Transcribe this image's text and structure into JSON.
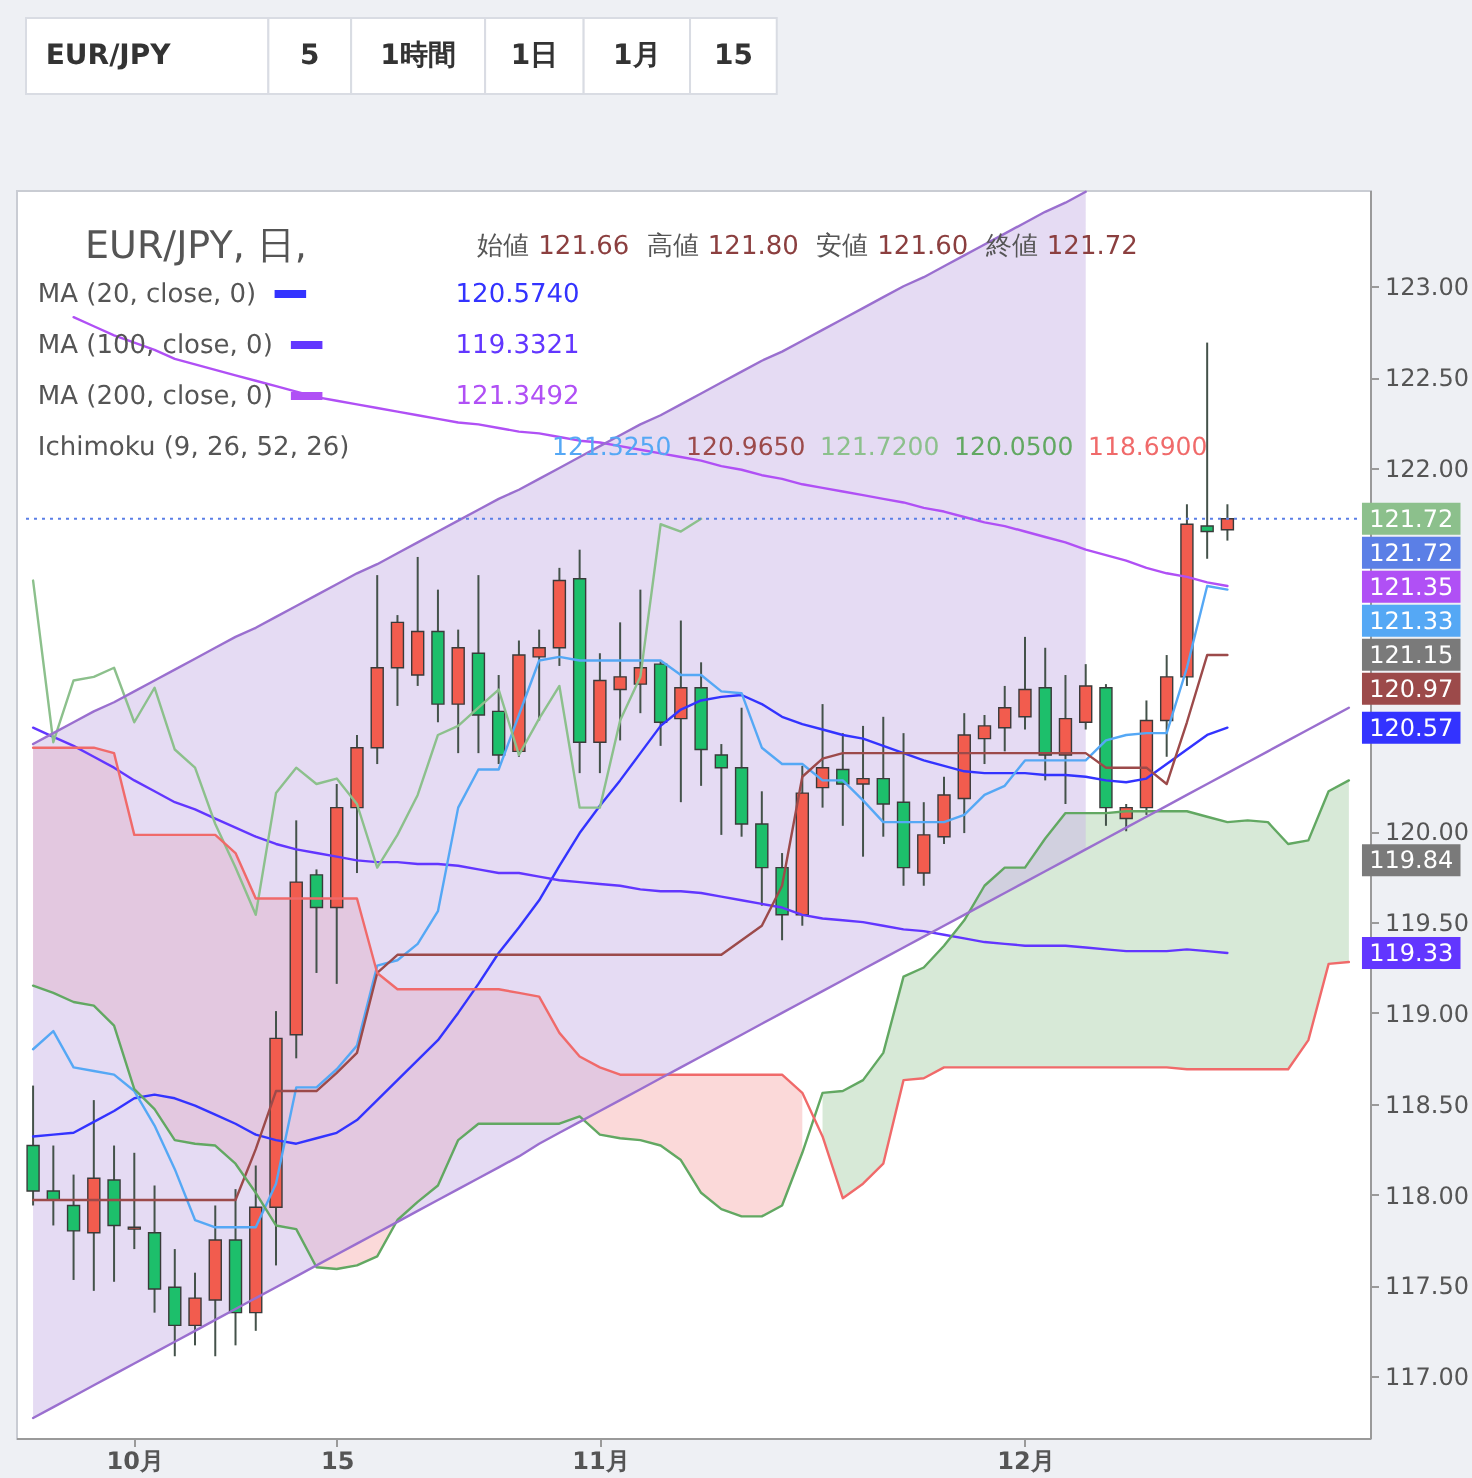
{
  "chart_data": {
    "type": "candlestick",
    "title": "EUR/JPY, 日,",
    "legend": "top left",
    "categories": [
      null,
      null,
      null,
      null,
      null,
      "10月",
      null,
      null,
      null,
      null,
      null,
      null,
      null,
      null,
      null,
      "15",
      null,
      null,
      null,
      null,
      null,
      null,
      null,
      null,
      null,
      null,
      null,
      null,
      "11月",
      null,
      null,
      null,
      null,
      null,
      null,
      null,
      null,
      null,
      null,
      null,
      null,
      null,
      null,
      null,
      null,
      null,
      null,
      null,
      null,
      "12月",
      null,
      null,
      null,
      null,
      null,
      null,
      null,
      null,
      null,
      null,
      null,
      null,
      null,
      null,
      null,
      null
    ],
    "ylim": [
      116.66,
      123.53
    ],
    "yticks": [
      {
        "value": 117,
        "label": "117.00"
      },
      {
        "value": 117.5,
        "label": "117.50"
      },
      {
        "value": 118,
        "label": "118.00"
      },
      {
        "value": 118.5,
        "label": "118.50"
      },
      {
        "value": 119,
        "label": "119.00"
      },
      {
        "value": 119.5,
        "label": "119.50"
      },
      {
        "value": 120,
        "label": "120.00"
      },
      {
        "value": 122,
        "label": "122.00"
      },
      {
        "value": 122.5,
        "label": "122.50"
      },
      {
        "value": 123,
        "label": "123.00"
      }
    ],
    "ohlc": [
      [
        118.27,
        118.6,
        117.94,
        118.02
      ],
      [
        118.02,
        118.27,
        117.83,
        117.97
      ],
      [
        117.94,
        118.11,
        117.53,
        117.8
      ],
      [
        117.79,
        118.52,
        117.47,
        118.09
      ],
      [
        118.08,
        118.27,
        117.52,
        117.83
      ],
      [
        117.81,
        118.23,
        117.7,
        117.82
      ],
      [
        117.79,
        118.05,
        117.35,
        117.48
      ],
      [
        117.49,
        117.7,
        117.11,
        117.28
      ],
      [
        117.28,
        117.57,
        117.17,
        117.43
      ],
      [
        117.42,
        117.94,
        117.11,
        117.75
      ],
      [
        117.75,
        118.03,
        117.17,
        117.35
      ],
      [
        117.35,
        118.16,
        117.25,
        117.93
      ],
      [
        117.93,
        119.01,
        117.61,
        118.86
      ],
      [
        118.88,
        120.06,
        118.75,
        119.72
      ],
      [
        119.76,
        119.79,
        119.22,
        119.58
      ],
      [
        119.58,
        120.26,
        119.16,
        120.13
      ],
      [
        120.13,
        120.53,
        119.77,
        120.46
      ],
      [
        120.46,
        121.41,
        120.37,
        120.9
      ],
      [
        120.9,
        121.19,
        120.69,
        121.15
      ],
      [
        120.86,
        121.51,
        120.8,
        121.1
      ],
      [
        121.1,
        121.33,
        120.6,
        120.7
      ],
      [
        120.7,
        121.11,
        120.43,
        121.01
      ],
      [
        120.98,
        121.41,
        120.43,
        120.64
      ],
      [
        120.66,
        120.86,
        120.37,
        120.42
      ],
      [
        120.44,
        121.05,
        120.41,
        120.97
      ],
      [
        120.96,
        121.11,
        120.61,
        121.01
      ],
      [
        121.01,
        121.45,
        120.91,
        121.38
      ],
      [
        121.39,
        121.55,
        120.32,
        120.49
      ],
      [
        120.49,
        120.98,
        120.32,
        120.83
      ],
      [
        120.78,
        121.15,
        120.5,
        120.85
      ],
      [
        120.81,
        121.33,
        120.65,
        120.9
      ],
      [
        120.92,
        120.94,
        120.47,
        120.6
      ],
      [
        120.62,
        121.16,
        120.16,
        120.79
      ],
      [
        120.79,
        120.93,
        120.25,
        120.45
      ],
      [
        120.42,
        120.48,
        119.98,
        120.35
      ],
      [
        120.35,
        120.68,
        119.97,
        120.04
      ],
      [
        120.04,
        120.22,
        119.59,
        119.8
      ],
      [
        119.8,
        119.88,
        119.4,
        119.54
      ],
      [
        119.54,
        120.36,
        119.48,
        120.21
      ],
      [
        120.24,
        120.7,
        120.13,
        120.35
      ],
      [
        120.34,
        120.54,
        120.03,
        120.26
      ],
      [
        120.26,
        120.58,
        119.86,
        120.29
      ],
      [
        120.29,
        120.63,
        119.97,
        120.15
      ],
      [
        120.16,
        120.54,
        119.7,
        119.8
      ],
      [
        119.77,
        120.16,
        119.7,
        119.98
      ],
      [
        119.97,
        120.3,
        119.93,
        120.2
      ],
      [
        120.18,
        120.65,
        119.99,
        120.53
      ],
      [
        120.51,
        120.64,
        120.37,
        120.58
      ],
      [
        120.57,
        120.8,
        120.44,
        120.68
      ],
      [
        120.63,
        121.07,
        120.56,
        120.78
      ],
      [
        120.79,
        121.01,
        120.28,
        120.42
      ],
      [
        120.42,
        120.86,
        120.15,
        120.62
      ],
      [
        120.6,
        120.92,
        120.56,
        120.8
      ],
      [
        120.79,
        120.81,
        120.03,
        120.13
      ],
      [
        120.07,
        120.15,
        120.0,
        120.13
      ],
      [
        120.13,
        120.72,
        120.09,
        120.61
      ],
      [
        120.61,
        120.97,
        120.41,
        120.85
      ],
      [
        120.85,
        121.8,
        120.8,
        121.69
      ],
      [
        121.68,
        122.69,
        121.5,
        121.65
      ],
      [
        121.66,
        121.8,
        121.6,
        121.72
      ],
      null,
      null,
      null,
      null,
      null,
      null
    ],
    "colors": [
      "#1dbf6b",
      "#1dbf6b",
      "#1dbf6b",
      "#f25c4e",
      "#1dbf6b",
      "#f25c4e",
      "#1dbf6b",
      "#1dbf6b",
      "#f25c4e",
      "#f25c4e",
      "#1dbf6b",
      "#f25c4e",
      "#f25c4e",
      "#f25c4e",
      "#1dbf6b",
      "#f25c4e",
      "#f25c4e",
      "#f25c4e",
      "#f25c4e",
      "#f25c4e",
      "#1dbf6b",
      "#f25c4e",
      "#1dbf6b",
      "#1dbf6b",
      "#f25c4e",
      "#f25c4e",
      "#f25c4e",
      "#1dbf6b",
      "#f25c4e",
      "#f25c4e",
      "#f25c4e",
      "#1dbf6b",
      "#f25c4e",
      "#1dbf6b",
      "#1dbf6b",
      "#1dbf6b",
      "#1dbf6b",
      "#1dbf6b",
      "#f25c4e",
      "#f25c4e",
      "#1dbf6b",
      "#f25c4e",
      "#1dbf6b",
      "#1dbf6b",
      "#f25c4e",
      "#f25c4e",
      "#f25c4e",
      "#f25c4e",
      "#f25c4e",
      "#f25c4e",
      "#1dbf6b",
      "#f25c4e",
      "#f25c4e",
      "#1dbf6b",
      "#f25c4e",
      "#f25c4e",
      "#f25c4e",
      "#f25c4e",
      "#1dbf6b",
      "#f25c4e",
      null,
      null,
      null,
      null,
      null,
      null
    ],
    "series": [
      {
        "name": "MA (20, close, 0)",
        "type": "line",
        "color": "#3333ff",
        "values": [
          118.32,
          118.33,
          118.34,
          118.4,
          118.46,
          118.53,
          118.55,
          118.53,
          118.49,
          118.44,
          118.39,
          118.33,
          118.3,
          118.28,
          118.31,
          118.34,
          118.41,
          118.52,
          118.63,
          118.74,
          118.85,
          119.0,
          119.16,
          119.33,
          119.47,
          119.62,
          119.81,
          119.99,
          120.14,
          120.28,
          120.43,
          120.58,
          120.67,
          120.72,
          120.74,
          120.75,
          120.7,
          120.63,
          120.59,
          120.56,
          120.53,
          120.51,
          120.47,
          120.43,
          120.39,
          120.36,
          120.33,
          120.32,
          120.32,
          120.32,
          120.31,
          120.31,
          120.3,
          120.28,
          120.27,
          120.29,
          120.37,
          120.45,
          120.53,
          120.57,
          null,
          null,
          null,
          null,
          null,
          null
        ]
      },
      {
        "name": "MA (100, close, 0)",
        "type": "line",
        "color": "#6236ff",
        "values": [
          120.57,
          120.52,
          120.47,
          120.41,
          120.35,
          120.28,
          120.22,
          120.16,
          120.12,
          120.07,
          120.02,
          119.97,
          119.93,
          119.9,
          119.88,
          119.86,
          119.84,
          119.83,
          119.83,
          119.82,
          119.82,
          119.81,
          119.79,
          119.77,
          119.77,
          119.75,
          119.73,
          119.72,
          119.71,
          119.7,
          119.68,
          119.67,
          119.67,
          119.66,
          119.64,
          119.62,
          119.6,
          119.58,
          119.54,
          119.52,
          119.51,
          119.5,
          119.48,
          119.46,
          119.45,
          119.43,
          119.41,
          119.39,
          119.38,
          119.37,
          119.37,
          119.37,
          119.36,
          119.35,
          119.34,
          119.34,
          119.34,
          119.35,
          119.34,
          119.33,
          null,
          null,
          null,
          null,
          null,
          null
        ]
      },
      {
        "name": "MA (200, close, 0)",
        "type": "line",
        "color": "#b050f5",
        "values": [
          null,
          null,
          122.83,
          122.78,
          122.73,
          122.69,
          122.65,
          122.6,
          122.57,
          122.54,
          122.51,
          122.48,
          122.45,
          122.42,
          122.39,
          122.37,
          122.35,
          122.33,
          122.31,
          122.29,
          122.27,
          122.25,
          122.24,
          122.22,
          122.2,
          122.19,
          122.17,
          122.15,
          122.14,
          122.12,
          122.1,
          122.08,
          122.06,
          122.04,
          122.01,
          121.99,
          121.96,
          121.94,
          121.91,
          121.89,
          121.87,
          121.85,
          121.83,
          121.81,
          121.78,
          121.76,
          121.73,
          121.7,
          121.68,
          121.65,
          121.62,
          121.59,
          121.55,
          121.52,
          121.49,
          121.45,
          121.42,
          121.4,
          121.37,
          121.35,
          null,
          null,
          null,
          null,
          null,
          null
        ]
      },
      {
        "type": "line",
        "color": "#55a8f5",
        "values": [
          118.8,
          118.9,
          118.7,
          118.68,
          118.66,
          118.57,
          118.38,
          118.14,
          117.86,
          117.82,
          117.82,
          117.82,
          118.06,
          118.59,
          118.59,
          118.69,
          118.82,
          119.26,
          119.29,
          119.38,
          119.56,
          120.13,
          120.34,
          120.34,
          120.64,
          120.94,
          120.96,
          120.94,
          120.94,
          120.94,
          120.94,
          120.94,
          120.86,
          120.86,
          120.77,
          120.76,
          120.46,
          120.37,
          120.37,
          120.28,
          120.28,
          120.17,
          120.05,
          120.05,
          120.05,
          120.05,
          120.09,
          120.2,
          120.25,
          120.39,
          120.39,
          120.39,
          120.39,
          120.5,
          120.53,
          120.54,
          120.54,
          120.9,
          121.35,
          121.33,
          null,
          null,
          null,
          null,
          null,
          null
        ]
      },
      {
        "type": "line",
        "color": "#9c4a4a",
        "values": [
          117.97,
          117.97,
          117.97,
          117.97,
          117.97,
          117.97,
          117.97,
          117.97,
          117.97,
          117.97,
          117.97,
          118.25,
          118.57,
          118.57,
          118.57,
          118.67,
          118.78,
          119.22,
          119.32,
          119.32,
          119.32,
          119.32,
          119.32,
          119.32,
          119.32,
          119.32,
          119.32,
          119.32,
          119.32,
          119.32,
          119.32,
          119.32,
          119.32,
          119.32,
          119.32,
          119.4,
          119.48,
          119.7,
          120.3,
          120.4,
          120.43,
          120.43,
          120.43,
          120.43,
          120.43,
          120.43,
          120.43,
          120.43,
          120.43,
          120.43,
          120.43,
          120.43,
          120.43,
          120.35,
          120.35,
          120.35,
          120.26,
          120.6,
          120.97,
          120.97,
          null,
          null,
          null,
          null,
          null,
          null
        ]
      },
      {
        "type": "line",
        "color": "#8cc08c",
        "values": [
          121.38,
          120.49,
          120.83,
          120.85,
          120.9,
          120.6,
          120.79,
          120.45,
          120.35,
          120.04,
          119.8,
          119.54,
          120.21,
          120.35,
          120.26,
          120.29,
          120.15,
          119.8,
          119.98,
          120.2,
          120.53,
          120.58,
          120.68,
          120.78,
          120.42,
          120.62,
          120.8,
          120.13,
          120.13,
          120.61,
          120.85,
          121.69,
          121.65,
          121.72,
          null,
          null,
          null,
          null,
          null,
          null,
          null,
          null,
          null,
          null,
          null,
          null,
          null,
          null,
          null,
          null,
          null,
          null,
          null,
          null,
          null,
          null,
          null,
          null,
          null,
          null,
          null,
          null,
          null,
          null,
          null,
          null
        ]
      },
      {
        "type": "line",
        "color": "#62a862",
        "values": [
          119.15,
          119.11,
          119.06,
          119.04,
          118.93,
          118.58,
          118.47,
          118.3,
          118.28,
          118.27,
          118.17,
          118.01,
          117.83,
          117.81,
          117.6,
          117.59,
          117.61,
          117.66,
          117.86,
          117.96,
          118.05,
          118.3,
          118.39,
          118.39,
          118.39,
          118.39,
          118.39,
          118.43,
          118.33,
          118.31,
          118.3,
          118.27,
          118.19,
          118.01,
          117.92,
          117.88,
          117.88,
          117.94,
          118.23,
          118.56,
          118.57,
          118.63,
          118.78,
          119.2,
          119.25,
          119.37,
          119.51,
          119.7,
          119.8,
          119.8,
          119.96,
          120.1,
          120.1,
          120.1,
          120.11,
          120.11,
          120.11,
          120.11,
          120.08,
          120.05,
          120.06,
          120.05,
          119.93,
          119.95,
          120.22,
          120.28
        ],
        "lower": [
          null,
          null,
          null,
          null,
          null,
          null,
          null,
          null,
          null,
          null,
          null,
          null,
          null,
          null,
          null,
          null,
          null,
          null,
          null,
          null,
          null,
          null,
          null,
          null,
          null,
          null,
          null,
          null,
          null,
          null,
          null,
          null,
          null,
          null,
          null,
          null,
          null,
          null,
          null,
          118.32,
          117.98,
          118.06,
          118.17,
          118.63,
          118.64,
          118.7,
          118.7,
          118.7,
          118.7,
          118.7,
          118.7,
          118.7,
          118.7,
          118.7,
          118.7,
          118.7,
          118.7,
          118.69,
          118.69,
          118.69,
          118.69,
          118.69,
          118.69,
          118.85,
          119.27,
          119.28
        ],
        "upper": [
          null,
          null,
          null,
          null,
          null,
          null,
          null,
          null,
          null,
          null,
          null,
          null,
          null,
          null,
          null,
          null,
          null,
          null,
          null,
          null,
          null,
          null,
          null,
          null,
          null,
          null,
          null,
          null,
          null,
          null,
          null,
          null,
          null,
          null,
          null,
          null,
          null,
          null,
          null,
          118.56,
          118.57,
          118.63,
          118.78,
          119.2,
          119.25,
          119.37,
          119.51,
          119.7,
          119.8,
          119.8,
          119.96,
          120.1,
          120.1,
          120.1,
          120.11,
          120.11,
          120.11,
          120.11,
          120.08,
          120.05,
          120.06,
          120.05,
          119.93,
          119.95,
          120.22,
          120.28
        ]
      },
      {
        "type": "line",
        "color": "#f06a6a",
        "values": [
          120.46,
          120.46,
          120.46,
          120.46,
          120.43,
          119.98,
          119.98,
          119.98,
          119.98,
          119.98,
          119.88,
          119.63,
          119.63,
          119.63,
          119.63,
          119.63,
          119.63,
          119.22,
          119.13,
          119.13,
          119.13,
          119.13,
          119.13,
          119.13,
          119.11,
          119.09,
          118.89,
          118.76,
          118.7,
          118.66,
          118.66,
          118.66,
          118.66,
          118.66,
          118.66,
          118.66,
          118.66,
          118.66,
          118.56,
          118.32,
          117.98,
          118.06,
          118.17,
          118.63,
          118.64,
          118.7,
          118.7,
          118.7,
          118.7,
          118.7,
          118.7,
          118.7,
          118.7,
          118.7,
          118.7,
          118.7,
          118.7,
          118.69,
          118.69,
          118.69,
          118.69,
          118.69,
          118.69,
          118.85,
          119.27,
          119.28
        ],
        "lower": [
          119.15,
          119.11,
          119.06,
          119.04,
          118.93,
          118.58,
          118.47,
          118.3,
          118.28,
          118.27,
          118.17,
          118.01,
          117.83,
          117.81,
          117.6,
          117.59,
          117.61,
          117.66,
          117.86,
          117.96,
          118.05,
          118.3,
          118.39,
          118.39,
          118.39,
          118.39,
          118.39,
          118.43,
          118.33,
          118.31,
          118.3,
          118.27,
          118.19,
          118.01,
          117.92,
          117.88,
          117.88,
          117.94,
          118.23,
          null,
          null,
          null,
          null,
          null,
          null,
          null,
          null,
          null,
          null,
          null,
          null,
          null,
          null,
          null,
          null,
          null,
          null,
          null,
          null,
          null,
          null,
          null,
          null,
          null,
          null,
          null
        ],
        "upper": [
          120.46,
          120.46,
          120.46,
          120.46,
          120.43,
          119.98,
          119.98,
          119.98,
          119.98,
          119.98,
          119.88,
          119.63,
          119.63,
          119.63,
          119.63,
          119.63,
          119.63,
          119.22,
          119.13,
          119.13,
          119.13,
          119.13,
          119.13,
          119.13,
          119.11,
          119.09,
          118.89,
          118.76,
          118.7,
          118.66,
          118.66,
          118.66,
          118.66,
          118.66,
          118.66,
          118.66,
          118.66,
          118.66,
          118.56,
          null,
          null,
          null,
          null,
          null,
          null,
          null,
          null,
          null,
          null,
          null,
          null,
          null,
          null,
          null,
          null,
          null,
          null,
          null,
          null,
          null,
          null,
          null,
          null,
          null,
          null,
          null
        ]
      },
      {
        "type": "line",
        "color": "#9a6fcf",
        "values": [
          120.48,
          120.54,
          120.6,
          120.66,
          120.71,
          120.77,
          120.83,
          120.89,
          120.95,
          121.01,
          121.07,
          121.12,
          121.18,
          121.24,
          121.3,
          121.36,
          121.42,
          121.47,
          121.53,
          121.59,
          121.65,
          121.71,
          121.77,
          121.83,
          121.88,
          121.94,
          122.0,
          122.06,
          122.12,
          122.18,
          122.24,
          122.29,
          122.35,
          122.41,
          122.47,
          122.53,
          122.59,
          122.64,
          122.7,
          122.76,
          122.82,
          122.88,
          122.94,
          123.0,
          123.05,
          123.11,
          123.17,
          123.23,
          123.29,
          123.35,
          123.41,
          123.46,
          123.52,
          null,
          null,
          null,
          null,
          null,
          null,
          null,
          null,
          null,
          null,
          null,
          null,
          null
        ],
        "lower": [
          116.77,
          116.83,
          116.89,
          116.95,
          117.01,
          117.07,
          117.13,
          117.19,
          117.25,
          117.31,
          117.37,
          117.43,
          117.49,
          117.55,
          117.61,
          117.67,
          117.73,
          117.79,
          117.85,
          117.91,
          117.97,
          118.03,
          118.09,
          118.15,
          118.21,
          118.28,
          118.34,
          118.4,
          118.46,
          118.52,
          118.58,
          118.64,
          118.7,
          118.76,
          118.82,
          118.88,
          118.94,
          119.0,
          119.06,
          119.12,
          119.18,
          119.24,
          119.3,
          119.36,
          119.42,
          119.48,
          119.54,
          119.6,
          119.66,
          119.72,
          119.78,
          119.84,
          119.9,
          null,
          null,
          null,
          null,
          null,
          null,
          null,
          null,
          null,
          null,
          null,
          null,
          null
        ],
        "upper": [
          120.48,
          120.54,
          120.6,
          120.66,
          120.71,
          120.77,
          120.83,
          120.89,
          120.95,
          121.01,
          121.07,
          121.12,
          121.18,
          121.24,
          121.3,
          121.36,
          121.42,
          121.47,
          121.53,
          121.59,
          121.65,
          121.71,
          121.77,
          121.83,
          121.88,
          121.94,
          122.0,
          122.06,
          122.12,
          122.18,
          122.24,
          122.29,
          122.35,
          122.41,
          122.47,
          122.53,
          122.59,
          122.64,
          122.7,
          122.76,
          122.82,
          122.88,
          122.94,
          123.0,
          123.05,
          123.11,
          123.17,
          123.23,
          123.29,
          123.35,
          123.41,
          123.46,
          123.52,
          null,
          null,
          null,
          null,
          null,
          null,
          null,
          null,
          null,
          null,
          null,
          null,
          null
        ]
      },
      {
        "type": "line",
        "color": "#9a6fcf",
        "values": [
          116.77,
          116.83,
          116.89,
          116.95,
          117.01,
          117.07,
          117.13,
          117.19,
          117.25,
          117.31,
          117.37,
          117.43,
          117.49,
          117.55,
          117.61,
          117.67,
          117.73,
          117.79,
          117.85,
          117.91,
          117.97,
          118.03,
          118.09,
          118.15,
          118.21,
          118.28,
          118.34,
          118.4,
          118.46,
          118.52,
          118.58,
          118.64,
          118.7,
          118.76,
          118.82,
          118.88,
          118.94,
          119.0,
          119.06,
          119.12,
          119.18,
          119.24,
          119.3,
          119.36,
          119.42,
          119.48,
          119.54,
          119.6,
          119.66,
          119.72,
          119.78,
          119.84,
          119.9,
          119.96,
          120.02,
          120.08,
          120.14,
          120.2,
          120.26,
          120.32,
          120.38,
          120.44,
          120.5,
          120.56,
          120.62,
          120.68
        ]
      }
    ],
    "ref_lines": [
      {
        "axis": "y",
        "value": 121.72,
        "label": "121.72",
        "color": "#5b7fe6",
        "line_style": "dotted"
      }
    ],
    "annotations": [
      "EUR/JPY",
      "5",
      "1時間",
      "1日",
      "1月",
      "15",
      "始値 121.66 高値 121.80 安値 121.60 終値 121.72",
      "120.5740",
      "119.3321",
      "121.3492",
      "Ichimoku (9, 26, 52, 26)",
      "121.3250",
      "120.9650",
      "121.7200",
      "120.0500",
      "118.6900",
      "121.72",
      "121.35",
      "121.33",
      "121.15",
      "120.97",
      "120.57",
      "119.84",
      "119.33"
    ]
  }
}
